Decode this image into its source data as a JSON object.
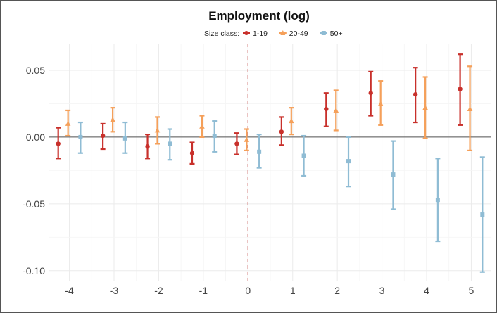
{
  "chart_data": {
    "type": "scatter",
    "title": "Employment (log)",
    "xlabel": "",
    "ylabel": "",
    "x": [
      -4,
      -3,
      -2,
      -1,
      0,
      1,
      2,
      3,
      4,
      5
    ],
    "x_tick_labels": [
      "-4",
      "-3",
      "-2",
      "-1",
      "0",
      "1",
      "2",
      "3",
      "4",
      "5"
    ],
    "y_ticks": [
      0.05,
      0.0,
      -0.05,
      -0.1
    ],
    "y_tick_labels": [
      "0.05",
      "0.00",
      "-0.05",
      "-0.10"
    ],
    "xlim": [
      -4.45,
      5.45
    ],
    "ylim": [
      -0.108,
      0.07
    ],
    "grid": true,
    "reference_hline": 0,
    "reference_vline": 0,
    "legend": {
      "title": "Size class:",
      "position": "top"
    },
    "series": [
      {
        "name": "1-19",
        "color": "#c8302b",
        "marker": "circle",
        "values": [
          -0.005,
          0.001,
          -0.007,
          -0.012,
          -0.005,
          0.004,
          0.021,
          0.033,
          0.032,
          0.036
        ],
        "lower": [
          -0.016,
          -0.009,
          -0.016,
          -0.02,
          -0.013,
          -0.006,
          0.008,
          0.016,
          0.011,
          0.009
        ],
        "upper": [
          0.007,
          0.01,
          0.002,
          -0.004,
          0.003,
          0.015,
          0.033,
          0.049,
          0.052,
          0.062
        ]
      },
      {
        "name": "20-49",
        "color": "#f5a05a",
        "marker": "triangle",
        "values": [
          0.01,
          0.013,
          0.005,
          0.008,
          -0.002,
          0.012,
          0.02,
          0.025,
          0.022,
          0.021
        ],
        "lower": [
          0.001,
          0.004,
          -0.005,
          0.0,
          -0.01,
          0.002,
          0.005,
          0.009,
          -0.001,
          -0.01
        ],
        "upper": [
          0.02,
          0.022,
          0.015,
          0.016,
          0.006,
          0.022,
          0.035,
          0.042,
          0.045,
          0.053
        ]
      },
      {
        "name": "50+",
        "color": "#8fbcd4",
        "marker": "square",
        "values": [
          0.0,
          -0.001,
          -0.005,
          0.001,
          -0.011,
          -0.014,
          -0.018,
          -0.028,
          -0.047,
          -0.058
        ],
        "lower": [
          -0.012,
          -0.012,
          -0.017,
          -0.011,
          -0.023,
          -0.029,
          -0.037,
          -0.054,
          -0.078,
          -0.101
        ],
        "upper": [
          0.011,
          0.011,
          0.006,
          0.012,
          0.002,
          0.001,
          0.0,
          -0.003,
          -0.016,
          -0.015
        ]
      }
    ]
  }
}
